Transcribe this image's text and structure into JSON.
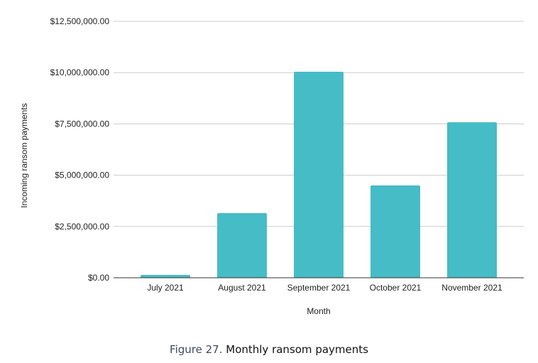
{
  "chart_data": {
    "type": "bar",
    "title": "",
    "categories": [
      "July 2021",
      "August 2021",
      "September 2021",
      "October 2021",
      "November 2021"
    ],
    "values": [
      140000,
      3150000,
      10040000,
      4500000,
      7580000
    ],
    "xlabel": "Month",
    "ylabel": "Incoming ransom payments",
    "ylim": [
      0,
      12500000
    ],
    "yticks": [
      0,
      2500000,
      5000000,
      7500000,
      10000000,
      12500000
    ],
    "ytick_labels": [
      "$0.00",
      "$2,500,000.00",
      "$5,000,000.00",
      "$7,500,000.00",
      "$10,000,000.00",
      "$12,500,000.00"
    ],
    "grid": true,
    "bar_color": "#46bcc6"
  },
  "caption": {
    "figure": "Figure 27.",
    "text": "Monthly ransom payments"
  }
}
